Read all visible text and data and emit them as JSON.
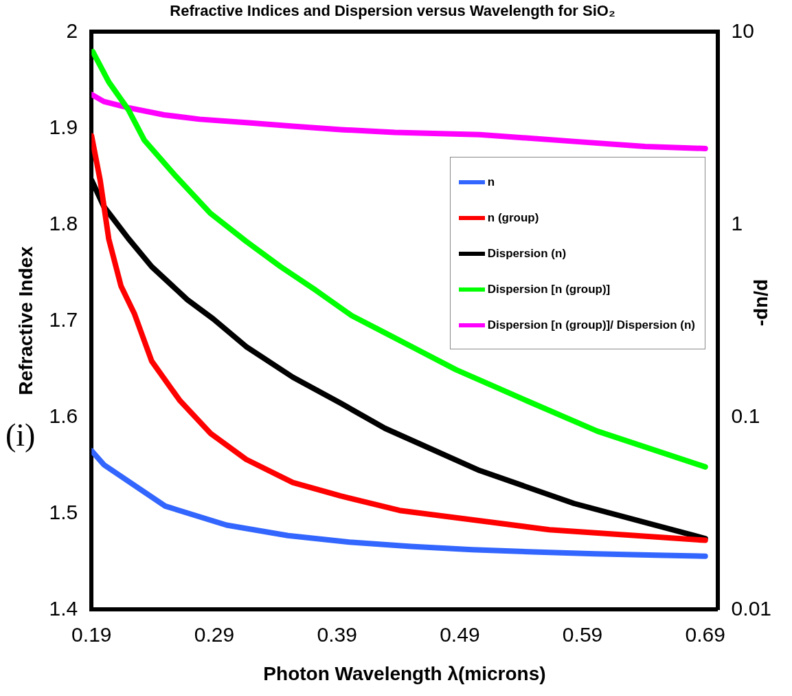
{
  "chart_data": {
    "type": "line",
    "title": "Refractive Indices and Dispersion versus Wavelength for SiO₂",
    "xlabel": "Photon Wavelength λ(microns)",
    "ylabel": "Refractive Index",
    "y2label": "-dn/d",
    "annotations": [
      "(i)"
    ],
    "xlim": [
      0.19,
      0.7
    ],
    "xticks": [
      0.19,
      0.29,
      0.39,
      0.49,
      0.59,
      0.69
    ],
    "ylim": [
      1.4,
      2
    ],
    "yticks": [
      1.4,
      1.5,
      1.6,
      1.7,
      1.8,
      1.9,
      2
    ],
    "y2lim": [
      0.01,
      10
    ],
    "y2ticks": [
      0.01,
      0.1,
      1,
      10
    ],
    "log": "y2",
    "grid": false,
    "legend": "top right",
    "series": [
      {
        "name": "n",
        "color": "#3366ff",
        "x": [
          0.19,
          0.2,
          0.25,
          0.3,
          0.35,
          0.4,
          0.45,
          0.5,
          0.55,
          0.6,
          0.65,
          0.69
        ],
        "values": [
          1.565,
          1.5505,
          1.5075,
          1.4878,
          1.4769,
          1.4701,
          1.4656,
          1.4623,
          1.4599,
          1.458,
          1.4565,
          1.4555
        ]
      },
      {
        "name": "n (group)",
        "color": "#ff0000",
        "x": [
          0.19,
          0.197,
          0.204,
          0.214,
          0.225,
          0.239,
          0.262,
          0.287,
          0.316,
          0.354,
          0.393,
          0.441,
          0.563,
          0.69
        ],
        "values": [
          1.892,
          1.846,
          1.785,
          1.736,
          1.707,
          1.658,
          1.617,
          1.583,
          1.556,
          1.532,
          1.518,
          1.503,
          1.483,
          1.472
        ]
      },
      {
        "name": "Dispersion (n)",
        "color": "#000000",
        "axis": "y2",
        "x": [
          0.19,
          0.2,
          0.22,
          0.239,
          0.268,
          0.289,
          0.316,
          0.354,
          0.393,
          0.429,
          0.506,
          0.583,
          0.69
        ],
        "values": [
          1.7,
          1.24,
          0.845,
          0.604,
          0.407,
          0.324,
          0.232,
          0.161,
          0.118,
          0.0874,
          0.0528,
          0.0356,
          0.0234
        ]
      },
      {
        "name": "Dispersion [n (group)]",
        "color": "#00ff00",
        "axis": "y2",
        "x": [
          0.191,
          0.204,
          0.22,
          0.233,
          0.258,
          0.287,
          0.316,
          0.344,
          0.373,
          0.402,
          0.429,
          0.487,
          0.544,
          0.602,
          0.69
        ],
        "values": [
          7.9,
          5.5,
          3.94,
          2.74,
          1.8,
          1.14,
          0.817,
          0.604,
          0.454,
          0.336,
          0.274,
          0.176,
          0.122,
          0.0845,
          0.0551
        ]
      },
      {
        "name": "Dispersion [n (group)]/ Dispersion (n)",
        "color": "#ff00ff",
        "axis": "y2",
        "x": [
          0.19,
          0.2,
          0.22,
          0.249,
          0.278,
          0.316,
          0.354,
          0.393,
          0.437,
          0.506,
          0.583,
          0.641,
          0.69
        ],
        "values": [
          4.73,
          4.35,
          4.04,
          3.71,
          3.52,
          3.38,
          3.24,
          3.11,
          3.01,
          2.93,
          2.7,
          2.54,
          2.48
        ]
      }
    ]
  }
}
